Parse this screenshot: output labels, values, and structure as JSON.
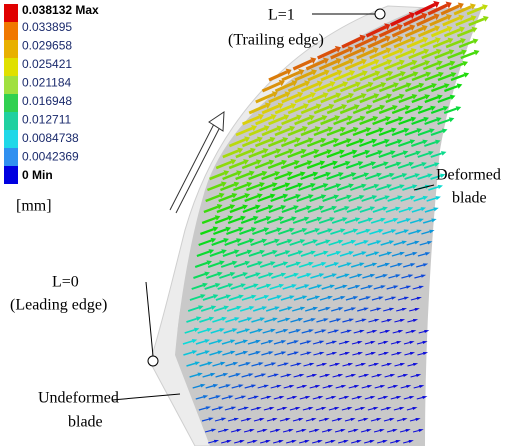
{
  "legend": {
    "max_label": "0.038132 Max",
    "levels": [
      "0.033895",
      "0.029658",
      "0.025421",
      "0.021184",
      "0.016948",
      "0.012711",
      "0.0084738",
      "0.0042369"
    ],
    "min_label": "0 Min",
    "unit": "[mm]"
  },
  "annotations": {
    "trailing": "L=1",
    "trailing_note": "(Trailing edge)",
    "leading": "L=0",
    "leading_note": "(Leading edge)",
    "deformed": "Deformed",
    "deformed_note": "blade",
    "undeformed": "Undeformed",
    "undeformed_note": "blade"
  }
}
